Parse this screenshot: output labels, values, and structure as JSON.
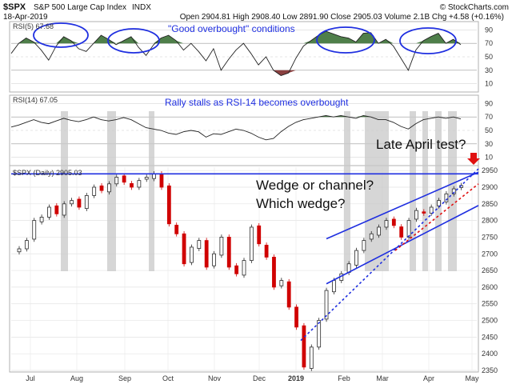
{
  "header": {
    "symbol": "$SPX",
    "name": "S&P 500 Large Cap Index",
    "exchange": "INDX",
    "date": "18-Apr-2019",
    "quote": "Open 2904.81  High 2908.40  Low 2891.90  Close 2905.03  Volume 2.1B  Chg +4.58 (+0.16%)",
    "credit": "© StockCharts.com"
  },
  "panels": {
    "rsi5_label": "RSI(5) 67.68",
    "rsi14_label": "RSI(14) 67.05",
    "price_label": "$SPX (Daily) 2905.03"
  },
  "annotations": {
    "rsi5": "\"Good overbought\" conditions",
    "rsi14": "Rally stalls as RSI-14 becomes overbought",
    "wedge_line1": "Wedge or channel?",
    "wedge_line2": "Which wedge?",
    "late_april": "Late April test?"
  },
  "colors": {
    "annotation_blue": "#1f2fe0",
    "overbought_fill": "#4f7f4a",
    "oversold_fill": "#8a4040",
    "down_candle": "#d00000",
    "up_candle": "#2a2a2a",
    "red_dashed": "#e01010",
    "highlight_bars": "#c8c8c8"
  },
  "chart_data": [
    {
      "type": "line",
      "panel": "RSI(5)",
      "y_ticks": [
        10,
        30,
        50,
        70,
        90
      ],
      "ylim": [
        0,
        100
      ],
      "overbought_level": 70,
      "oversold_level": 30,
      "last_value": 67.68,
      "x_months": [
        "Jul",
        "Aug",
        "Sep",
        "Oct",
        "Nov",
        "Dec",
        "2019",
        "Feb",
        "Mar",
        "Apr",
        "May"
      ],
      "approx_values": [
        55,
        70,
        78,
        72,
        60,
        45,
        66,
        80,
        74,
        62,
        58,
        70,
        82,
        76,
        68,
        74,
        80,
        64,
        52,
        68,
        78,
        82,
        74,
        60,
        70,
        58,
        44,
        62,
        30,
        46,
        60,
        70,
        55,
        38,
        50,
        30,
        22,
        26,
        48,
        66,
        74,
        82,
        88,
        84,
        80,
        78,
        72,
        85,
        86,
        70,
        76,
        66,
        48,
        30,
        60,
        74,
        80,
        85,
        70,
        76,
        68
      ]
    },
    {
      "type": "line",
      "panel": "RSI(14)",
      "y_ticks": [
        10,
        30,
        50,
        70,
        90
      ],
      "ylim": [
        0,
        100
      ],
      "overbought_level": 70,
      "oversold_level": 30,
      "last_value": 67.05,
      "approx_values": [
        55,
        58,
        62,
        66,
        62,
        60,
        64,
        68,
        65,
        63,
        66,
        70,
        66,
        64,
        66,
        69,
        66,
        60,
        54,
        52,
        50,
        46,
        44,
        48,
        50,
        48,
        40,
        45,
        44,
        48,
        52,
        50,
        46,
        40,
        36,
        38,
        48,
        56,
        62,
        66,
        68,
        70,
        72,
        70,
        72,
        70,
        68,
        72,
        70,
        66,
        66,
        62,
        56,
        52,
        60,
        66,
        68,
        70,
        68,
        70,
        67
      ]
    },
    {
      "type": "candlestick",
      "panel": "$SPX (Daily)",
      "y_ticks": [
        2350,
        2400,
        2450,
        2500,
        2550,
        2600,
        2650,
        2700,
        2750,
        2800,
        2850,
        2900,
        2950
      ],
      "ylim": [
        2350,
        2960
      ],
      "resistance_level": 2940,
      "x_months": [
        "Jul",
        "Aug",
        "Sep",
        "Oct",
        "Nov",
        "Dec",
        "2019",
        "Feb",
        "Mar",
        "Apr",
        "May"
      ],
      "last_close": 2905.03,
      "approx_closes": [
        2715,
        2740,
        2800,
        2810,
        2840,
        2820,
        2850,
        2860,
        2840,
        2875,
        2900,
        2890,
        2910,
        2930,
        2915,
        2900,
        2920,
        2930,
        2940,
        2900,
        2790,
        2760,
        2670,
        2720,
        2740,
        2660,
        2700,
        2750,
        2660,
        2640,
        2680,
        2780,
        2730,
        2690,
        2600,
        2620,
        2540,
        2480,
        2360,
        2420,
        2500,
        2590,
        2620,
        2640,
        2670,
        2710,
        2740,
        2760,
        2780,
        2800,
        2785,
        2750,
        2800,
        2830,
        2822,
        2840,
        2860,
        2880,
        2895,
        2905
      ]
    }
  ]
}
